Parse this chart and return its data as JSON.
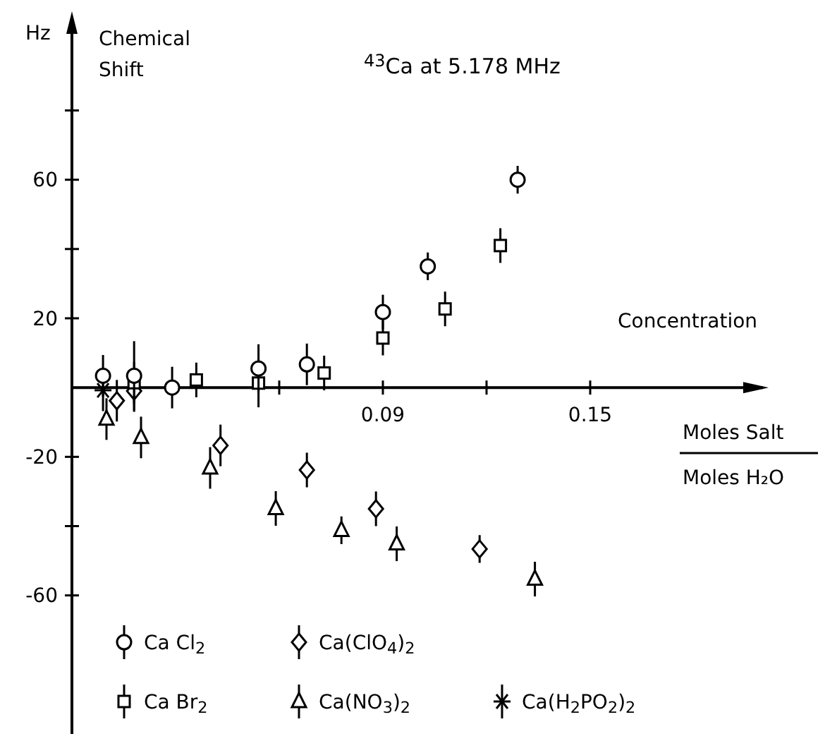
{
  "chart_data": {
    "type": "scatter",
    "title": "$^{43}$Ca at 5.178 MHz",
    "xlabel": "Concentration",
    "ylabel": "Chemical Shift",
    "annotations": [
      "Hz",
      "Moles Salt",
      "Moles H₂O"
    ],
    "xlim": [
      0,
      0.2
    ],
    "xticks": [
      {
        "value": 0.06,
        "label": null
      },
      0.09,
      {
        "value": 0.12,
        "label": null
      },
      0.15
    ],
    "ylim": [
      -100,
      107
    ],
    "yticks": [
      -60,
      {
        "value": -40,
        "label": null
      },
      -20,
      20,
      {
        "value": 40,
        "label": null
      },
      60,
      {
        "value": 80,
        "label": null
      }
    ],
    "grid": false,
    "legend": "bottom left",
    "series": [
      {
        "name": "Ca Cl$_{2}$",
        "color": "#000000",
        "marker": "circle",
        "x": [
          0.009,
          0.018,
          0.029,
          0.054,
          0.068,
          0.09,
          0.103,
          0.129
        ],
        "values": [
          3.4,
          3.4,
          0,
          5.5,
          6.7,
          21.8,
          35,
          60
        ],
        "errors": [
          6,
          10,
          6,
          7,
          6,
          5,
          4,
          4
        ]
      },
      {
        "name": "Ca Br$_{2}$",
        "color": "#000000",
        "marker": "square",
        "x": [
          0.018,
          0.036,
          0.054,
          0.073,
          0.09,
          0.108,
          0.124
        ],
        "values": [
          1.4,
          2.2,
          1.3,
          4.2,
          14.3,
          22.7,
          41
        ],
        "errors": [
          6,
          5,
          7,
          5,
          5,
          5,
          5
        ]
      },
      {
        "name": "Ca(ClO$_{4}$)$_{2}$",
        "color": "#000000",
        "marker": "diamond",
        "x": [
          0.013,
          0.018,
          0.043,
          0.068,
          0.088,
          0.118
        ],
        "values": [
          -3.8,
          -1,
          -16.7,
          -23.8,
          -35,
          -46.6
        ],
        "errors": [
          6,
          6,
          6,
          5,
          5,
          4
        ]
      },
      {
        "name": "Ca(NO$_{3}$)$_{2}$",
        "color": "#000000",
        "marker": "triangle",
        "x": [
          0.01,
          0.02,
          0.04,
          0.059,
          0.078,
          0.094,
          0.134
        ],
        "values": [
          -9.1,
          -14.4,
          -23.2,
          -34.9,
          -41.2,
          -45.1,
          -55.3
        ],
        "errors": [
          6,
          6,
          6,
          5,
          4,
          5,
          5
        ]
      },
      {
        "name": "Ca(H$_{2}$PO$_{2}$)$_{2}$",
        "color": "#000000",
        "marker": "cross",
        "x": [
          0.009
        ],
        "values": [
          -0.8
        ],
        "errors": [
          6
        ]
      }
    ]
  }
}
